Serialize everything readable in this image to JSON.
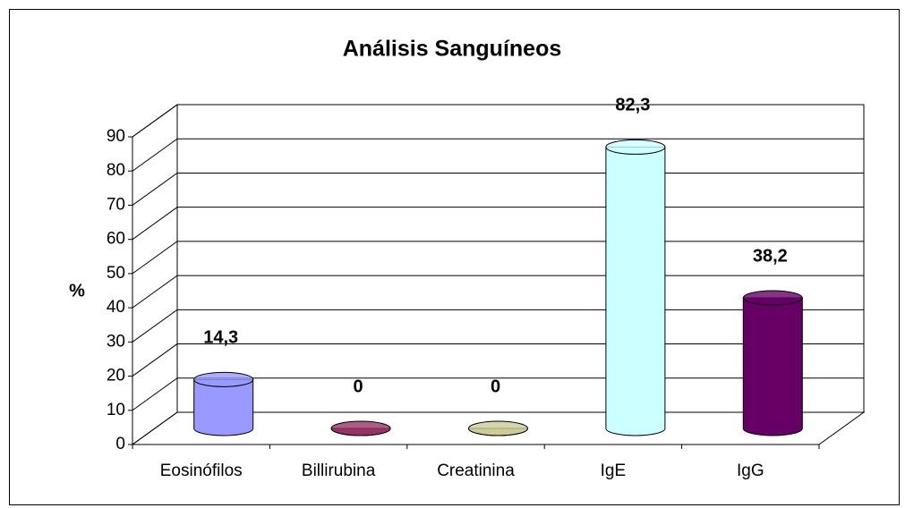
{
  "chart_data": {
    "type": "bar3d",
    "title": "Análisis Sanguíneos",
    "ylabel": "%",
    "categories": [
      "Eosinófilos",
      "Billirubina",
      "Creatinina",
      "IgE",
      "IgG"
    ],
    "values": [
      14.3,
      0,
      0,
      82.3,
      38.2
    ],
    "value_labels": [
      "14,3",
      "0",
      "0",
      "82,3",
      "38,2"
    ],
    "colors": [
      "#9999ff",
      "#993366",
      "#cccc99",
      "#ccffff",
      "#660066"
    ],
    "ylim": [
      0,
      90
    ],
    "yticks": [
      0,
      10,
      20,
      30,
      40,
      50,
      60,
      70,
      80,
      90
    ],
    "grid": true
  }
}
